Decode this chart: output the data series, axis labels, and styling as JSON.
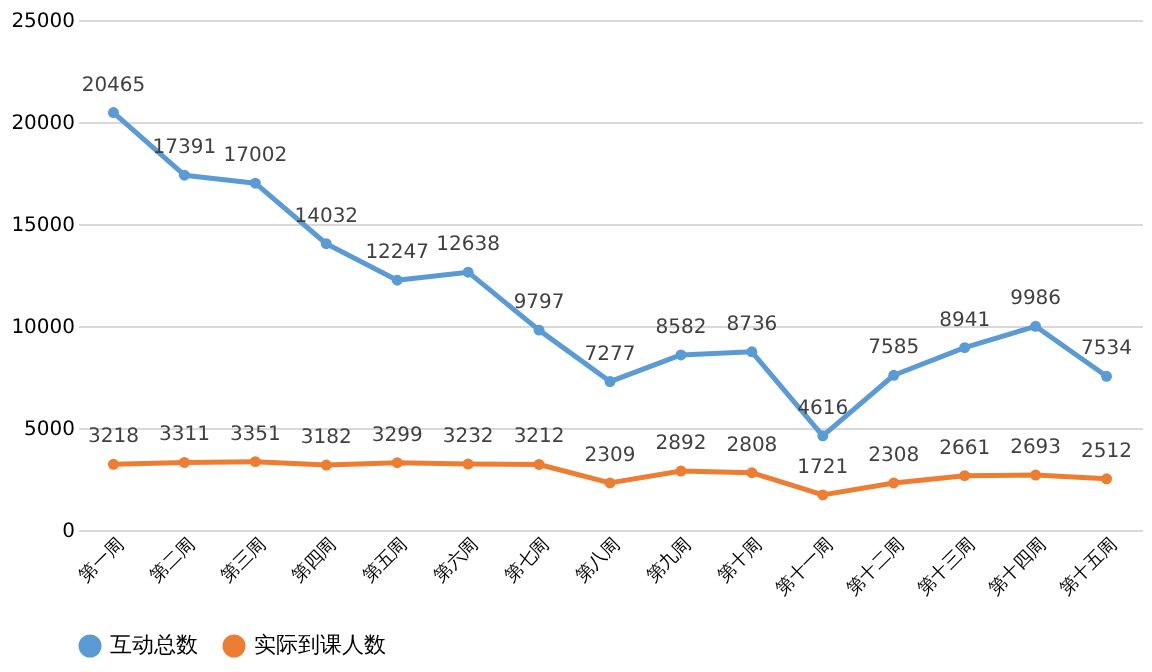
{
  "chart_data": {
    "type": "line",
    "categories": [
      "第一周",
      "第二周",
      "第三周",
      "第四周",
      "第五周",
      "第六周",
      "第七周",
      "第八周",
      "第九周",
      "第十周",
      "第十一周",
      "第十二周",
      "第十三周",
      "第十四周",
      "第十五周"
    ],
    "series": [
      {
        "name": "互动总数",
        "color": "#5b9bd5",
        "values": [
          20465,
          17391,
          17002,
          14032,
          12247,
          12638,
          9797,
          7277,
          8582,
          8736,
          4616,
          7585,
          8941,
          9986,
          7534
        ]
      },
      {
        "name": "实际到课人数",
        "color": "#ed7d31",
        "values": [
          3218,
          3311,
          3351,
          3182,
          3299,
          3232,
          3212,
          2309,
          2892,
          2808,
          1721,
          2308,
          2661,
          2693,
          2512
        ]
      }
    ],
    "ylim": [
      0,
      25000
    ],
    "yticks": [
      0,
      5000,
      10000,
      15000,
      20000,
      25000
    ],
    "grid": "y",
    "legend": "bottom",
    "marker": "circle",
    "line_style": "solid",
    "data_labels": true
  }
}
